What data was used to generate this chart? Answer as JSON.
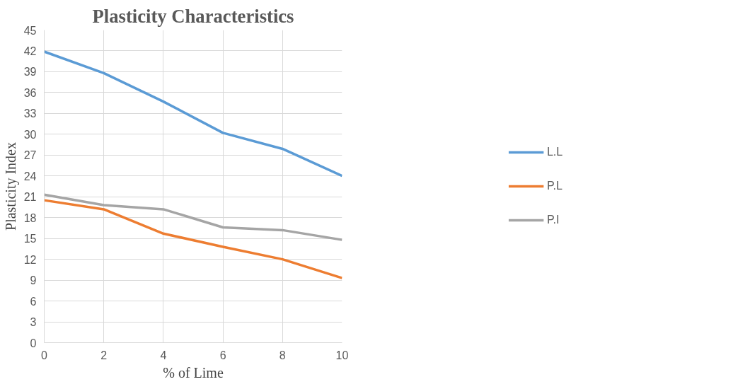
{
  "chart_data": {
    "type": "line",
    "title": "Plasticity Characteristics",
    "xlabel": "% of Lime",
    "ylabel": "Plasticity Index",
    "x": [
      0,
      2,
      4,
      6,
      8,
      10
    ],
    "xlim": [
      0,
      10
    ],
    "xticks": [
      0,
      2,
      4,
      6,
      8,
      10
    ],
    "ylim": [
      0,
      45
    ],
    "yticks": [
      0,
      3,
      6,
      9,
      12,
      15,
      18,
      21,
      24,
      27,
      30,
      33,
      36,
      39,
      42,
      45
    ],
    "grid": true,
    "legend": "right",
    "marker": "none",
    "line_style": "solid",
    "series": [
      {
        "name": "L.L",
        "color": "#5b9bd5",
        "values": [
          41.9,
          38.8,
          34.7,
          30.2,
          27.9,
          24.0
        ]
      },
      {
        "name": "P.L",
        "color": "#ed7d31",
        "values": [
          20.5,
          19.2,
          15.7,
          13.8,
          12.0,
          9.3
        ]
      },
      {
        "name": "P.I",
        "color": "#a5a5a5",
        "values": [
          21.3,
          19.8,
          19.2,
          16.6,
          16.2,
          14.8
        ]
      }
    ]
  }
}
